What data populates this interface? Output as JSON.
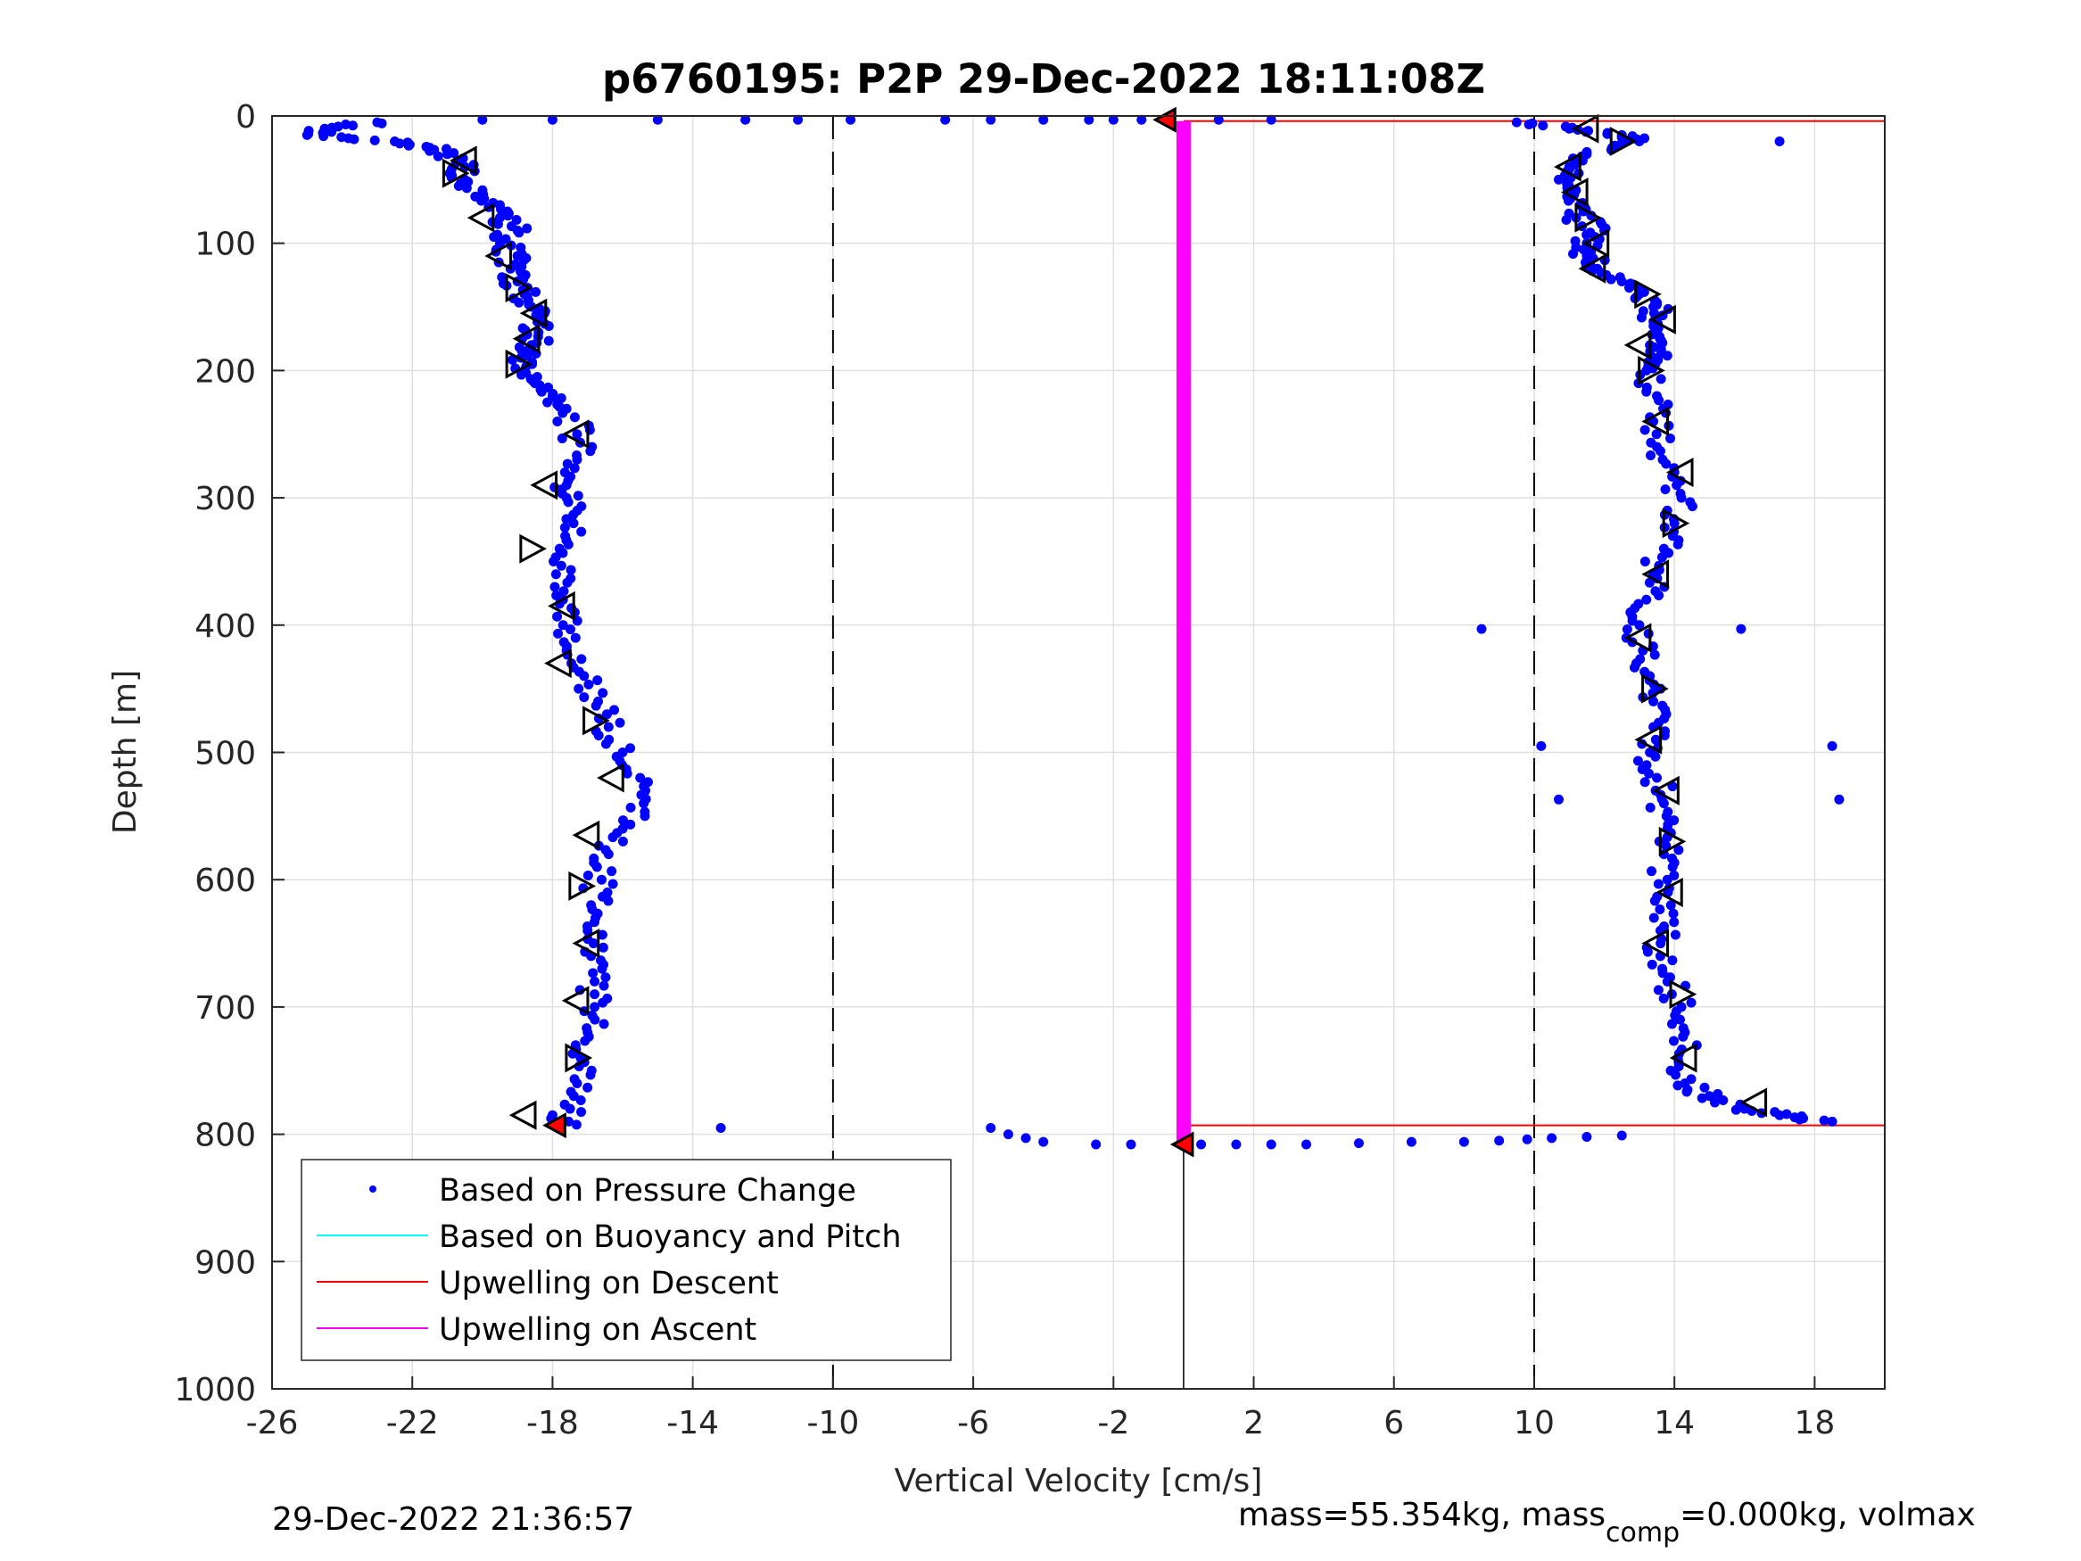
{
  "footer": {
    "timestamp": "29-Dec-2022 21:36:57",
    "mass_prefix": "mass=55.354kg, mass",
    "mass_sub": "comp",
    "mass_suffix": "=0.000kg, volmax"
  },
  "colors": {
    "pressure_points": "#0000ff",
    "buoyancy_pitch": "#00ffff",
    "upwelling_descent": "#ff0000",
    "upwelling_ascent": "#ff00ff",
    "grid": "#e0e0e0",
    "axis": "#262626"
  },
  "chart_data": {
    "type": "scatter",
    "title": "p6760195: P2P 29-Dec-2022 18:11:08Z",
    "xlabel": "Vertical Velocity [cm/s]",
    "ylabel": "Depth [m]",
    "xlim": [
      -26,
      20
    ],
    "ylim": [
      0,
      1000
    ],
    "y_reversed": true,
    "x_ticks": [
      -26,
      -22,
      -18,
      -14,
      -10,
      -6,
      -2,
      2,
      6,
      10,
      14,
      18
    ],
    "y_ticks": [
      0,
      100,
      200,
      300,
      400,
      500,
      600,
      700,
      800,
      900,
      1000
    ],
    "grid": true,
    "legend_location": "bottom-left",
    "legend": [
      "Based on Pressure Change",
      "Based on Buoyancy and Pitch",
      "Upwelling on Descent",
      "Upwelling on Ascent"
    ],
    "reference_lines": {
      "dashed_vertical_x": [
        -10,
        10
      ],
      "solid_vertical_x": 0,
      "solid_vertical_y_range": [
        808,
        1000
      ],
      "upwelling_descent_horizontals": [
        {
          "depth": 4,
          "x_from": 0,
          "x_to": 20
        },
        {
          "depth": 793,
          "x_from": 0,
          "x_to": 20
        }
      ],
      "upwelling_ascent_segment": {
        "x": 0,
        "depth_from": 4,
        "depth_to": 808
      }
    },
    "series": [
      {
        "name": "Based on Pressure Change",
        "style": "dots",
        "profiles": [
          {
            "label": "descent",
            "depth": [
              5,
              10,
              15,
              20,
              25,
              30,
              40,
              50,
              60,
              70,
              80,
              90,
              100,
              110,
              120,
              130,
              140,
              150,
              160,
              170,
              180,
              190,
              200,
              210,
              220,
              230,
              250,
              270,
              290,
              300,
              320,
              340,
              360,
              380,
              400,
              420,
              440,
              460,
              480,
              500,
              520,
              540,
              560,
              580,
              600,
              620,
              640,
              660,
              680,
              700,
              720,
              740,
              760,
              780,
              795
            ],
            "x": [
              -23.0,
              -24.5,
              -25.0,
              -22.5,
              -21.5,
              -21.0,
              -20.5,
              -20.5,
              -20.0,
              -19.5,
              -19.5,
              -19.0,
              -19.5,
              -19.0,
              -19.2,
              -19.0,
              -18.8,
              -18.6,
              -18.4,
              -18.4,
              -18.6,
              -18.9,
              -18.8,
              -18.5,
              -18.0,
              -17.6,
              -17.3,
              -17.3,
              -17.6,
              -17.6,
              -17.4,
              -17.8,
              -17.9,
              -17.7,
              -17.7,
              -17.6,
              -17.1,
              -16.7,
              -16.4,
              -16.0,
              -15.5,
              -15.4,
              -16.0,
              -16.4,
              -16.6,
              -16.9,
              -17.0,
              -16.9,
              -16.8,
              -16.8,
              -17.0,
              -17.2,
              -17.3,
              -17.5,
              -17.8
            ]
          },
          {
            "label": "surface_transit",
            "depth": [
              3,
              3,
              3,
              3,
              3,
              3,
              3,
              3,
              3,
              3,
              3,
              3,
              3,
              3
            ],
            "x": [
              -20.0,
              -18.0,
              -15.0,
              -12.5,
              -11.0,
              -9.5,
              -6.8,
              -5.5,
              -4.0,
              -2.7,
              -2.0,
              -1.2,
              1.0,
              2.5
            ]
          },
          {
            "label": "bottom_transit",
            "depth": [
              795,
              800,
              803,
              806,
              808,
              808,
              808,
              808,
              808,
              808,
              807,
              806,
              806,
              805,
              804,
              803,
              802,
              801
            ],
            "x": [
              -5.5,
              -5.0,
              -4.5,
              -4.0,
              -2.5,
              -1.5,
              0.5,
              1.5,
              2.5,
              3.5,
              5.0,
              6.5,
              8.0,
              9.0,
              9.8,
              10.5,
              11.5,
              12.5
            ]
          },
          {
            "label": "ascent",
            "depth": [
              5,
              10,
              15,
              20,
              30,
              40,
              50,
              60,
              70,
              80,
              90,
              100,
              110,
              120,
              130,
              140,
              150,
              160,
              170,
              180,
              190,
              200,
              220,
              240,
              260,
              280,
              300,
              320,
              340,
              360,
              380,
              400,
              420,
              440,
              460,
              480,
              500,
              520,
              540,
              560,
              580,
              600,
              620,
              640,
              660,
              680,
              700,
              720,
              740,
              760,
              770,
              780,
              785,
              790
            ],
            "x": [
              9.5,
              11.0,
              12.5,
              13.0,
              11.5,
              11.0,
              10.7,
              11.0,
              11.3,
              11.2,
              12.0,
              11.5,
              11.5,
              11.8,
              12.5,
              13.0,
              13.4,
              13.5,
              13.5,
              13.3,
              13.4,
              13.2,
              13.5,
              13.4,
              13.5,
              14.0,
              14.2,
              14.0,
              13.7,
              13.4,
              13.2,
              13.0,
              13.1,
              13.3,
              13.4,
              13.4,
              13.3,
              13.5,
              13.7,
              13.8,
              13.7,
              13.8,
              13.9,
              13.6,
              13.6,
              13.8,
              14.2,
              14.3,
              14.1,
              14.3,
              15.0,
              16.0,
              17.0,
              18.5
            ]
          },
          {
            "label": "outliers",
            "depth": [
              20,
              795,
              403,
              495,
              537,
              403,
              495,
              537
            ],
            "x": [
              17.0,
              -13.2,
              8.5,
              10.2,
              10.7,
              15.9,
              18.5,
              18.7
            ]
          }
        ]
      },
      {
        "name": "Based on Buoyancy and Pitch",
        "style": "triangles",
        "profiles": [
          {
            "label": "descent",
            "depth": [
              35,
              45,
              80,
              110,
              135,
              155,
              175,
              195,
              250,
              290,
              340,
              385,
              430,
              475,
              520,
              565,
              605,
              650,
              695,
              740,
              785
            ],
            "x": [
              -20.5,
              -20.8,
              -20.0,
              -19.5,
              -19.0,
              -18.5,
              -18.7,
              -19.0,
              -17.3,
              -18.2,
              -18.6,
              -17.7,
              -17.8,
              -16.8,
              -16.3,
              -17.0,
              -17.2,
              -17.0,
              -17.3,
              -17.3,
              -18.8
            ]
          },
          {
            "label": "ascent",
            "depth": [
              10,
              20,
              40,
              60,
              80,
              100,
              120,
              140,
              160,
              180,
              200,
              240,
              280,
              320,
              360,
              410,
              450,
              490,
              530,
              570,
              610,
              650,
              690,
              740,
              775
            ],
            "x": [
              11.5,
              12.5,
              11.0,
              11.2,
              11.5,
              11.8,
              11.7,
              13.2,
              13.7,
              13.0,
              13.3,
              13.5,
              14.2,
              14.0,
              13.5,
              13.0,
              13.4,
              13.3,
              13.8,
              13.9,
              13.9,
              13.5,
              14.2,
              14.3,
              16.3
            ]
          }
        ]
      },
      {
        "name": "Upwelling on Descent",
        "style": "red_markers",
        "points": [
          {
            "x": -0.5,
            "depth": 3
          },
          {
            "x": -17.9,
            "depth": 793
          },
          {
            "x": 0.0,
            "depth": 808
          }
        ]
      }
    ]
  }
}
